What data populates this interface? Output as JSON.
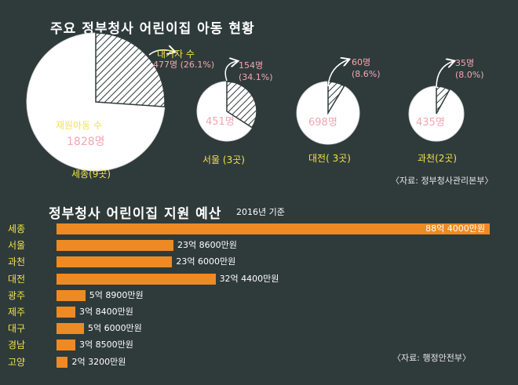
{
  "pies": {
    "title": "주요 정부청사 어린이집 아동 현황",
    "legend_waiting": "대기자 수",
    "legend_enrolled": "재원아동 수",
    "items": [
      {
        "name": "세종(9곳)",
        "enrolled": "1828명",
        "waiting": "477명 (26.1%)",
        "waiting_share": 0.261
      },
      {
        "name": "서울 (3곳)",
        "enrolled": "451명",
        "waiting": "154명 (34.1%)",
        "waiting_share": 0.341
      },
      {
        "name": "대전( 3곳)",
        "enrolled": "698명",
        "waiting": "60명 (8.6%)",
        "waiting_share": 0.086
      },
      {
        "name": "과천(2곳)",
        "enrolled": "435명",
        "waiting": "35명 (8.0%)",
        "waiting_share": 0.08
      }
    ],
    "source": "〈자료: 정부청사관리본부〉"
  },
  "budget": {
    "title": "정부청사 어린이집 지원 예산",
    "subtitle": "2016년 기준",
    "source": "〈자료: 행정안전부〉"
  },
  "chart_data": [
    {
      "type": "pie",
      "title": "주요 정부청사 어린이집 아동 현황",
      "categories": [
        "세종(9곳)",
        "서울 (3곳)",
        "대전( 3곳)",
        "과천(2곳)"
      ],
      "series": [
        {
          "name": "재원아동 수",
          "values": [
            1828,
            451,
            698,
            435
          ]
        },
        {
          "name": "대기자 수",
          "values": [
            477,
            154,
            60,
            35
          ]
        }
      ]
    },
    {
      "type": "bar",
      "title": "정부청사 어린이집 지원 예산",
      "subtitle": "2016년 기준",
      "categories": [
        "세종",
        "서울",
        "과천",
        "대전",
        "광주",
        "제주",
        "대구",
        "경남",
        "고양"
      ],
      "values": [
        884000,
        238600,
        236000,
        324400,
        58900,
        38400,
        56000,
        38500,
        23200
      ],
      "value_labels": [
        "88억 4000만원",
        "23억 8600만원",
        "23억 6000만원",
        "32억 4400만원",
        "5억 8900만원",
        "3억 8400만원",
        "5억 6000만원",
        "3억 8500만원",
        "2억 3200만원"
      ],
      "unit": "만원",
      "xlim": [
        0,
        884000
      ]
    }
  ],
  "colors": {
    "background": "#2f3b3a",
    "bar": "#ee8a23",
    "label_yellow": "#f1e24a",
    "label_pink": "#f3a6b4",
    "pie_fill": "#ffffff"
  }
}
